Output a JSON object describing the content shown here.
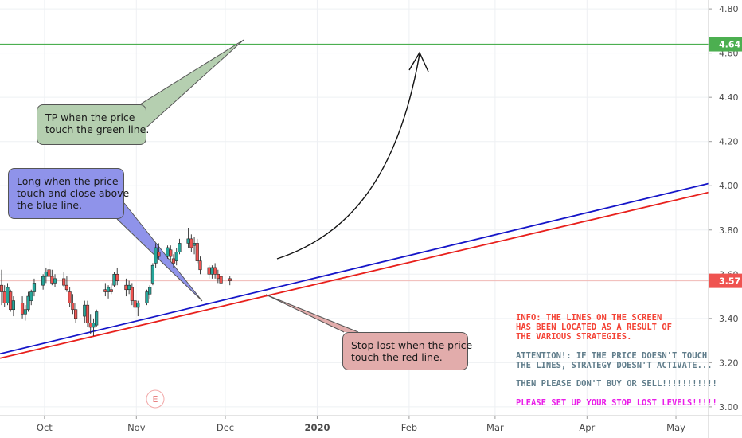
{
  "chart_data": {
    "type": "candlestick",
    "y_ticks": [
      "4.80",
      "4.60",
      "4.40",
      "4.20",
      "4.00",
      "3.80",
      "3.60",
      "3.40",
      "3.20",
      "3.00"
    ],
    "y_tick_values": [
      4.8,
      4.6,
      4.4,
      4.2,
      4.0,
      3.8,
      3.6,
      3.4,
      3.2,
      3.0
    ],
    "ylim": [
      2.96,
      4.84
    ],
    "x_ticks": [
      "Oct",
      "Nov",
      "Dec",
      "2020",
      "Feb",
      "Mar",
      "Apr",
      "May"
    ],
    "x_tick_dates": [
      "2019-10-01",
      "2019-11-01",
      "2019-12-01",
      "2020-01-01",
      "2020-02-01",
      "2020-03-01",
      "2020-04-01",
      "2020-05-01"
    ],
    "xlim": [
      "2019-09-16",
      "2020-05-12"
    ],
    "grid": true,
    "price_labels": [
      {
        "text": "4.64",
        "value": 4.64,
        "color": "#4caf50"
      },
      {
        "text": "3.57",
        "value": 3.57,
        "color": "#ef5350"
      }
    ],
    "candles": [
      {
        "date": "2019-09-16",
        "o": 3.55,
        "h": 3.62,
        "l": 3.46,
        "c": 3.52
      },
      {
        "date": "2019-09-17",
        "o": 3.52,
        "h": 3.55,
        "l": 3.45,
        "c": 3.47
      },
      {
        "date": "2019-09-18",
        "o": 3.47,
        "h": 3.56,
        "l": 3.46,
        "c": 3.54
      },
      {
        "date": "2019-09-19",
        "o": 3.52,
        "h": 3.53,
        "l": 3.43,
        "c": 3.44
      },
      {
        "date": "2019-09-20",
        "o": 3.44,
        "h": 3.5,
        "l": 3.41,
        "c": 3.48
      },
      {
        "date": "2019-09-23",
        "o": 3.47,
        "h": 3.5,
        "l": 3.4,
        "c": 3.42
      },
      {
        "date": "2019-09-24",
        "o": 3.42,
        "h": 3.46,
        "l": 3.39,
        "c": 3.44
      },
      {
        "date": "2019-09-25",
        "o": 3.44,
        "h": 3.52,
        "l": 3.43,
        "c": 3.5
      },
      {
        "date": "2019-09-26",
        "o": 3.48,
        "h": 3.53,
        "l": 3.46,
        "c": 3.52
      },
      {
        "date": "2019-09-27",
        "o": 3.52,
        "h": 3.58,
        "l": 3.5,
        "c": 3.56
      },
      {
        "date": "2019-09-30",
        "o": 3.55,
        "h": 3.6,
        "l": 3.53,
        "c": 3.59
      },
      {
        "date": "2019-10-01",
        "o": 3.59,
        "h": 3.63,
        "l": 3.56,
        "c": 3.61
      },
      {
        "date": "2019-10-02",
        "o": 3.62,
        "h": 3.66,
        "l": 3.58,
        "c": 3.59
      },
      {
        "date": "2019-10-03",
        "o": 3.59,
        "h": 3.62,
        "l": 3.55,
        "c": 3.56
      },
      {
        "date": "2019-10-04",
        "o": 3.56,
        "h": 3.6,
        "l": 3.54,
        "c": 3.58
      },
      {
        "date": "2019-10-07",
        "o": 3.58,
        "h": 3.61,
        "l": 3.54,
        "c": 3.55
      },
      {
        "date": "2019-10-08",
        "o": 3.55,
        "h": 3.59,
        "l": 3.52,
        "c": 3.53
      },
      {
        "date": "2019-10-09",
        "o": 3.52,
        "h": 3.54,
        "l": 3.45,
        "c": 3.47
      },
      {
        "date": "2019-10-10",
        "o": 3.47,
        "h": 3.51,
        "l": 3.42,
        "c": 3.44
      },
      {
        "date": "2019-10-11",
        "o": 3.44,
        "h": 3.47,
        "l": 3.38,
        "c": 3.4
      },
      {
        "date": "2019-10-14",
        "o": 3.41,
        "h": 3.48,
        "l": 3.38,
        "c": 3.46
      },
      {
        "date": "2019-10-15",
        "o": 3.46,
        "h": 3.48,
        "l": 3.36,
        "c": 3.38
      },
      {
        "date": "2019-10-16",
        "o": 3.38,
        "h": 3.42,
        "l": 3.33,
        "c": 3.36
      },
      {
        "date": "2019-10-17",
        "o": 3.36,
        "h": 3.4,
        "l": 3.32,
        "c": 3.38
      },
      {
        "date": "2019-10-18",
        "o": 3.37,
        "h": 3.44,
        "l": 3.36,
        "c": 3.43
      },
      {
        "date": "2019-10-21",
        "o": 3.53,
        "h": 3.56,
        "l": 3.5,
        "c": 3.52
      },
      {
        "date": "2019-10-22",
        "o": 3.52,
        "h": 3.55,
        "l": 3.49,
        "c": 3.54
      },
      {
        "date": "2019-10-23",
        "o": 3.53,
        "h": 3.56,
        "l": 3.51,
        "c": 3.52
      },
      {
        "date": "2019-10-24",
        "o": 3.55,
        "h": 3.61,
        "l": 3.54,
        "c": 3.6
      },
      {
        "date": "2019-10-25",
        "o": 3.6,
        "h": 3.63,
        "l": 3.55,
        "c": 3.57
      },
      {
        "date": "2019-10-28",
        "o": 3.55,
        "h": 3.58,
        "l": 3.5,
        "c": 3.53
      },
      {
        "date": "2019-10-29",
        "o": 3.53,
        "h": 3.57,
        "l": 3.51,
        "c": 3.55
      },
      {
        "date": "2019-10-30",
        "o": 3.54,
        "h": 3.56,
        "l": 3.46,
        "c": 3.48
      },
      {
        "date": "2019-10-31",
        "o": 3.48,
        "h": 3.51,
        "l": 3.43,
        "c": 3.45
      },
      {
        "date": "2019-11-01",
        "o": 3.45,
        "h": 3.48,
        "l": 3.41,
        "c": 3.47
      },
      {
        "date": "2019-11-04",
        "o": 3.47,
        "h": 3.53,
        "l": 3.46,
        "c": 3.52
      },
      {
        "date": "2019-11-05",
        "o": 3.51,
        "h": 3.55,
        "l": 3.49,
        "c": 3.54
      },
      {
        "date": "2019-11-06",
        "o": 3.56,
        "h": 3.65,
        "l": 3.55,
        "c": 3.64
      },
      {
        "date": "2019-11-07",
        "o": 3.65,
        "h": 3.74,
        "l": 3.63,
        "c": 3.72
      },
      {
        "date": "2019-11-08",
        "o": 3.7,
        "h": 3.74,
        "l": 3.67,
        "c": 3.68
      },
      {
        "date": "2019-11-11",
        "o": 3.68,
        "h": 3.73,
        "l": 3.67,
        "c": 3.72
      },
      {
        "date": "2019-11-12",
        "o": 3.71,
        "h": 3.73,
        "l": 3.66,
        "c": 3.68
      },
      {
        "date": "2019-11-13",
        "o": 3.67,
        "h": 3.69,
        "l": 3.63,
        "c": 3.65
      },
      {
        "date": "2019-11-14",
        "o": 3.66,
        "h": 3.72,
        "l": 3.64,
        "c": 3.7
      },
      {
        "date": "2019-11-15",
        "o": 3.7,
        "h": 3.76,
        "l": 3.69,
        "c": 3.74
      },
      {
        "date": "2019-11-18",
        "o": 3.74,
        "h": 3.81,
        "l": 3.72,
        "c": 3.76
      },
      {
        "date": "2019-11-19",
        "o": 3.76,
        "h": 3.78,
        "l": 3.7,
        "c": 3.72
      },
      {
        "date": "2019-11-20",
        "o": 3.73,
        "h": 3.77,
        "l": 3.69,
        "c": 3.74
      },
      {
        "date": "2019-11-21",
        "o": 3.74,
        "h": 3.76,
        "l": 3.65,
        "c": 3.66
      },
      {
        "date": "2019-11-22",
        "o": 3.66,
        "h": 3.68,
        "l": 3.6,
        "c": 3.62
      },
      {
        "date": "2019-11-25",
        "o": 3.63,
        "h": 3.64,
        "l": 3.58,
        "c": 3.6
      },
      {
        "date": "2019-11-26",
        "o": 3.6,
        "h": 3.64,
        "l": 3.58,
        "c": 3.63
      },
      {
        "date": "2019-11-27",
        "o": 3.63,
        "h": 3.65,
        "l": 3.58,
        "c": 3.6
      },
      {
        "date": "2019-11-28",
        "o": 3.6,
        "h": 3.62,
        "l": 3.56,
        "c": 3.58
      },
      {
        "date": "2019-11-29",
        "o": 3.59,
        "h": 3.6,
        "l": 3.55,
        "c": 3.56
      },
      {
        "date": "2019-12-02",
        "o": 3.58,
        "h": 3.59,
        "l": 3.55,
        "c": 3.57
      }
    ],
    "lines": [
      {
        "name": "green",
        "color": "#4caf50",
        "from": {
          "date": "2019-09-16",
          "value": 4.64
        },
        "to": {
          "date": "2020-05-12",
          "value": 4.64
        }
      },
      {
        "name": "blue",
        "color": "#1515c8",
        "from": {
          "date": "2019-09-16",
          "value": 3.24
        },
        "to": {
          "date": "2020-05-12",
          "value": 4.01
        }
      },
      {
        "name": "red",
        "color": "#e8201c",
        "from": {
          "date": "2019-09-16",
          "value": 3.22
        },
        "to": {
          "date": "2020-05-12",
          "value": 3.97
        }
      }
    ]
  },
  "annotations": {
    "tp": "TP when the price\ntouch the green line.",
    "long": "Long when the price\ntouch and close above\nthe blue line.",
    "stop": "Stop lost when the price\ntouch the red line."
  },
  "event_marker": "E",
  "info": {
    "line1": "INFO: THE LINES ON THE SCREEN\nHAS BEEN LOCATED AS A RESULT OF\nTHE VARIOUS STRATEGIES.",
    "line2": "ATTENTION!: IF THE PRICE DOESN'T TOUCH\nTHE LINES, STRATEGY DOESN'T ACTIVATE...",
    "line3": "THEN PLEASE DON'T BUY OR SELL!!!!!!!!!!!",
    "line4": "PLEASE SET UP YOUR STOP LOST LEVELS!!!!!",
    "colors": {
      "line1": "#f44336",
      "line2": "#607d8b",
      "line3": "#607d8b",
      "line4": "#e91ee8"
    }
  }
}
